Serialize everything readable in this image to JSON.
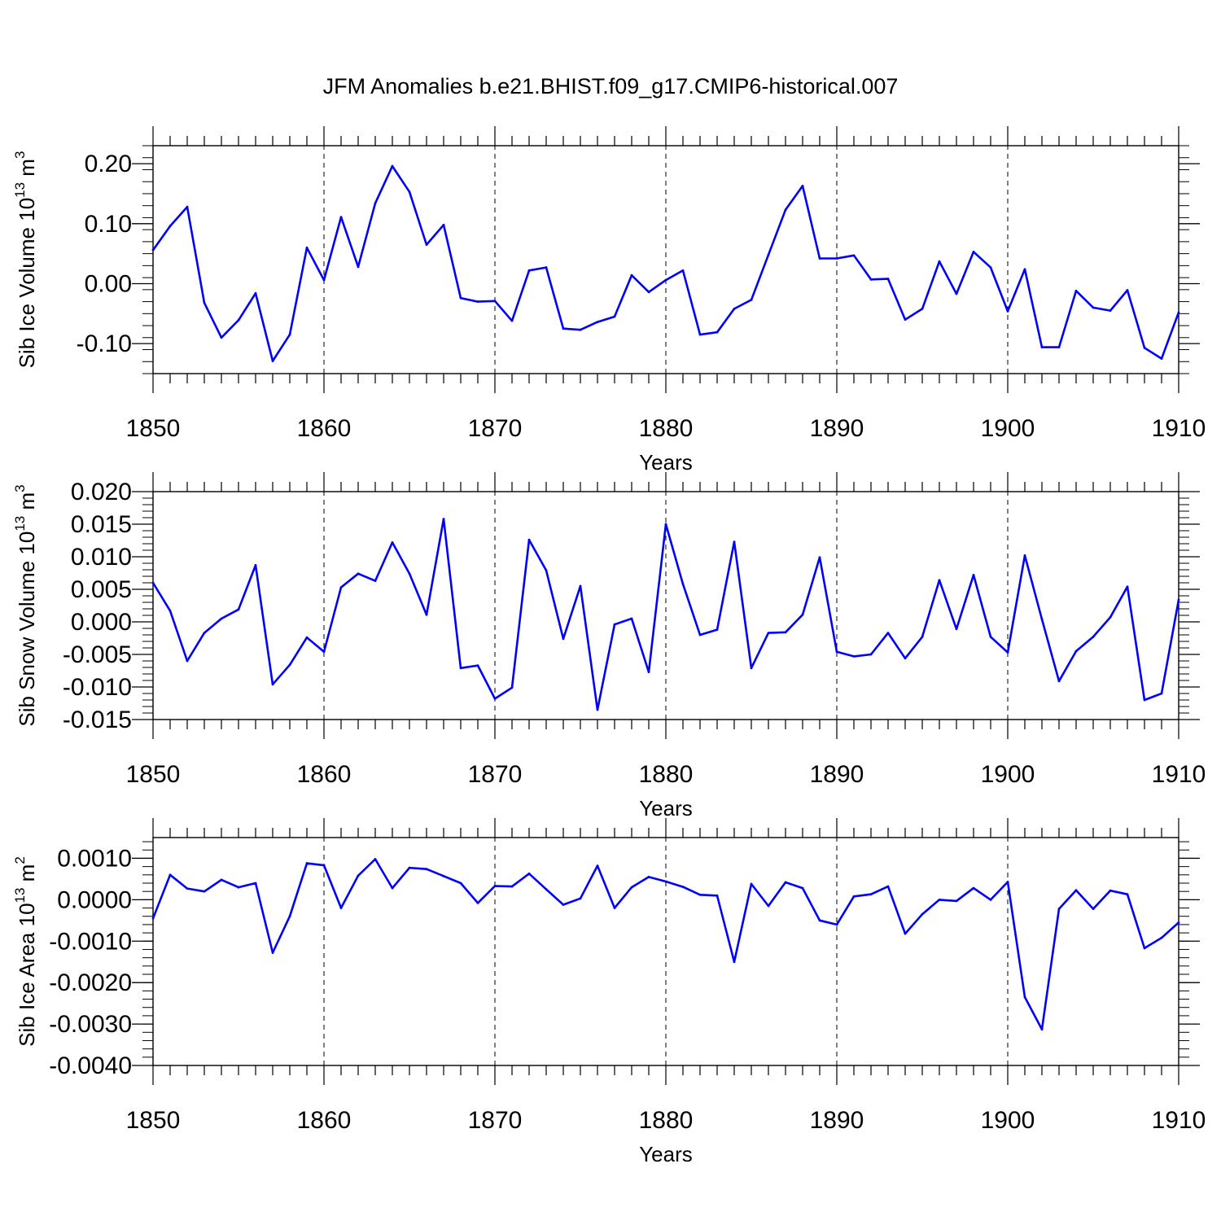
{
  "title": "JFM Anomalies b.e21.BHIST.f09_g17.CMIP6-historical.007",
  "line_color": "#0000ff",
  "chart_data": [
    {
      "type": "line",
      "ylabel": "Sib Ice Volume 10",
      "ylabel_sup": "13",
      "ylabel_unit": " m",
      "ylabel_unit_sup": "3",
      "xlabel": "Years",
      "xlim": [
        1850,
        1910
      ],
      "ylim": [
        -0.15,
        0.23
      ],
      "x_ticks": [
        1850,
        1860,
        1870,
        1880,
        1890,
        1900,
        1910
      ],
      "x_tick_labels": [
        "1850",
        "1860",
        "1870",
        "1880",
        "1890",
        "1900",
        "1910"
      ],
      "y_ticks": [
        0.2,
        0.1,
        0.0,
        -0.1
      ],
      "y_tick_labels": [
        "0.20",
        "0.10",
        "0.00",
        "-0.10"
      ],
      "y_minor_step": 0.02,
      "x_start": 1850,
      "values": [
        0.056,
        0.096,
        0.128,
        -0.032,
        -0.09,
        -0.061,
        -0.016,
        -0.129,
        -0.085,
        0.06,
        0.006,
        0.111,
        0.028,
        0.134,
        0.196,
        0.153,
        0.065,
        0.098,
        -0.024,
        -0.03,
        -0.029,
        -0.062,
        0.022,
        0.027,
        -0.075,
        -0.077,
        -0.064,
        -0.055,
        0.014,
        -0.014,
        0.006,
        0.022,
        -0.085,
        -0.081,
        -0.042,
        -0.027,
        0.048,
        0.123,
        0.163,
        0.042,
        0.042,
        0.047,
        0.007,
        0.008,
        -0.06,
        -0.042,
        0.037,
        -0.017,
        0.053,
        0.027,
        -0.046,
        0.024,
        -0.106,
        -0.106,
        -0.012,
        -0.04,
        -0.045,
        -0.011,
        -0.107,
        -0.125,
        -0.048
      ]
    },
    {
      "type": "line",
      "ylabel": "Sib Snow Volume 10",
      "ylabel_sup": "13",
      "ylabel_unit": " m",
      "ylabel_unit_sup": "3",
      "xlabel": "Years",
      "xlim": [
        1850,
        1910
      ],
      "ylim": [
        -0.015,
        0.02
      ],
      "x_ticks": [
        1850,
        1860,
        1870,
        1880,
        1890,
        1900,
        1910
      ],
      "x_tick_labels": [
        "1850",
        "1860",
        "1870",
        "1880",
        "1890",
        "1900",
        "1910"
      ],
      "y_ticks": [
        0.02,
        0.015,
        0.01,
        0.005,
        0.0,
        -0.005,
        -0.01,
        -0.015
      ],
      "y_tick_labels": [
        "0.020",
        "0.015",
        "0.010",
        "0.005",
        "0.000",
        "-0.005",
        "-0.010",
        "-0.015"
      ],
      "y_minor_step": 0.001,
      "x_start": 1850,
      "values": [
        0.006,
        0.0017,
        -0.006,
        -0.0017,
        0.0005,
        0.0019,
        0.0087,
        -0.0096,
        -0.0066,
        -0.0024,
        -0.0046,
        0.0053,
        0.0074,
        0.0063,
        0.0122,
        0.0074,
        0.0011,
        0.0158,
        -0.0071,
        -0.0067,
        -0.0118,
        -0.0101,
        0.0126,
        0.0079,
        -0.0026,
        0.0055,
        -0.0135,
        -0.0004,
        0.0005,
        -0.0077,
        0.015,
        0.0058,
        -0.002,
        -0.0012,
        0.0123,
        -0.0071,
        -0.0017,
        -0.0016,
        0.0011,
        0.0099,
        -0.0046,
        -0.0053,
        -0.005,
        -0.0017,
        -0.0056,
        -0.0023,
        0.0064,
        -0.0011,
        0.0072,
        -0.0023,
        -0.0047,
        0.0102,
        0.0004,
        -0.0091,
        -0.0045,
        -0.0023,
        0.0007,
        0.0054,
        -0.012,
        -0.011,
        0.0034
      ]
    },
    {
      "type": "line",
      "ylabel": "Sib Ice Area 10",
      "ylabel_sup": "13",
      "ylabel_unit": " m",
      "ylabel_unit_sup": "2",
      "xlabel": "Years",
      "xlim": [
        1850,
        1910
      ],
      "ylim": [
        -0.004,
        0.0015
      ],
      "x_ticks": [
        1850,
        1860,
        1870,
        1880,
        1890,
        1900,
        1910
      ],
      "x_tick_labels": [
        "1850",
        "1860",
        "1870",
        "1880",
        "1890",
        "1900",
        "1910"
      ],
      "y_ticks": [
        0.001,
        0.0,
        -0.001,
        -0.002,
        -0.003,
        -0.004
      ],
      "y_tick_labels": [
        "0.0010",
        "0.0000",
        "-0.0010",
        "-0.0020",
        "-0.0030",
        "-0.0040"
      ],
      "y_minor_step": 0.0002,
      "x_start": 1850,
      "values": [
        -0.00045,
        0.0006,
        0.00027,
        0.0002,
        0.00048,
        0.0003,
        0.0004,
        -0.00128,
        -0.0004,
        0.00088,
        0.00083,
        -0.0002,
        0.00058,
        0.00098,
        0.00028,
        0.00077,
        0.00074,
        0.00057,
        0.0004,
        -8e-05,
        0.00033,
        0.00032,
        0.00063,
        0.00025,
        -0.00012,
        3e-05,
        0.00082,
        -0.0002,
        0.0003,
        0.00055,
        0.00044,
        0.00031,
        0.00012,
        0.0001,
        -0.0015,
        0.00038,
        -0.00015,
        0.00042,
        0.00028,
        -0.0005,
        -0.0006,
        8e-05,
        0.00013,
        0.00032,
        -0.00082,
        -0.00035,
        0.0,
        -3e-05,
        0.00028,
        0.0,
        0.00043,
        -0.00235,
        -0.00313,
        -0.00022,
        0.00023,
        -0.00022,
        0.00022,
        0.00013,
        -0.00117,
        -0.00092,
        -0.00055
      ]
    }
  ]
}
